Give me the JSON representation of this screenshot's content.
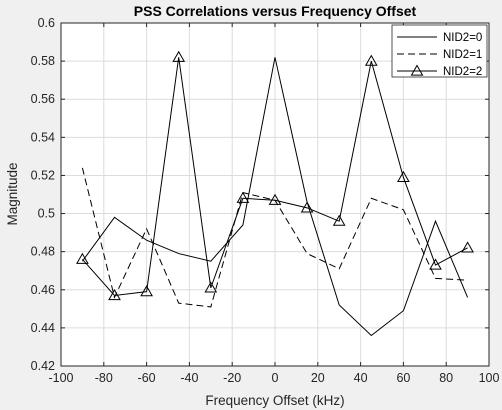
{
  "chart_data": {
    "type": "line",
    "title": "PSS Correlations versus Frequency Offset",
    "xlabel": "Frequency Offset (kHz)",
    "ylabel": "Magnitude",
    "xlim": [
      -100,
      100
    ],
    "ylim": [
      0.42,
      0.6
    ],
    "xticks": [
      -100,
      -80,
      -60,
      -40,
      -20,
      0,
      20,
      40,
      60,
      80,
      100
    ],
    "xtick_labels": [
      "-100",
      "-80",
      "-60",
      "-40",
      "-20",
      "0",
      "20",
      "40",
      "60",
      "80",
      "100"
    ],
    "yticks": [
      0.42,
      0.44,
      0.46,
      0.48,
      0.5,
      0.52,
      0.54,
      0.56,
      0.58,
      0.6
    ],
    "ytick_labels": [
      "0.42",
      "0.44",
      "0.46",
      "0.48",
      "0.5",
      "0.52",
      "0.54",
      "0.56",
      "0.58",
      "0.6"
    ],
    "grid": true,
    "legend_position": "top-right",
    "x": [
      -90,
      -75,
      -60,
      -45,
      -30,
      -15,
      0,
      15,
      30,
      45,
      60,
      75,
      90
    ],
    "series": [
      {
        "name": "NID2=0",
        "line_style": "solid",
        "marker": "none",
        "values": [
          0.475,
          0.498,
          0.486,
          0.479,
          0.475,
          0.494,
          0.582,
          0.506,
          0.452,
          0.436,
          0.449,
          0.496,
          0.456
        ]
      },
      {
        "name": "NID2=1",
        "line_style": "dashed",
        "marker": "none",
        "values": [
          0.524,
          0.456,
          0.492,
          0.453,
          0.451,
          0.511,
          0.507,
          0.479,
          0.471,
          0.508,
          0.502,
          0.466,
          0.465
        ]
      },
      {
        "name": "NID2=2",
        "line_style": "solid",
        "marker": "triangle",
        "values": [
          0.476,
          0.457,
          0.459,
          0.582,
          0.461,
          0.508,
          0.507,
          0.503,
          0.496,
          0.58,
          0.519,
          0.473,
          0.482
        ]
      }
    ],
    "colors": {
      "figure_background": "#f0f0f0",
      "plot_background": "#ffffff",
      "line": "#000000",
      "grid": "#dcdcdc",
      "axis": "#262626"
    }
  }
}
